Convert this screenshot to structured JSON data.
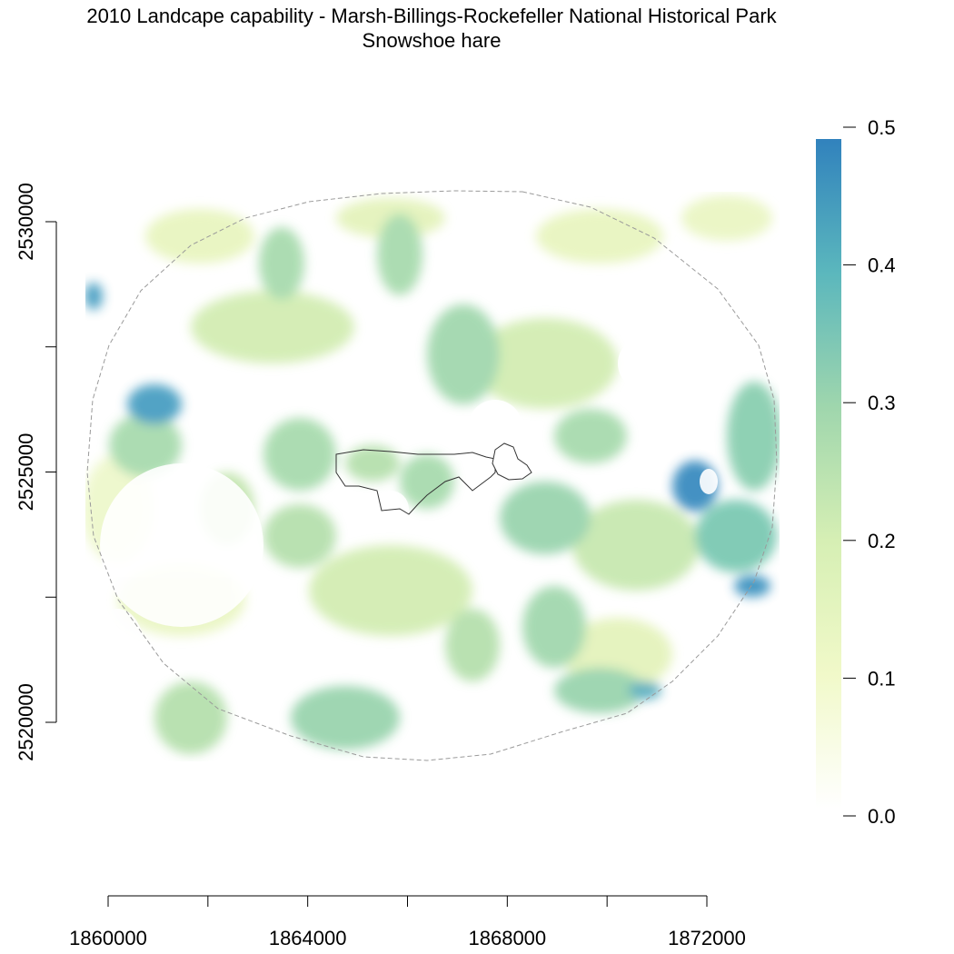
{
  "title": "2010 Landcape capability - Marsh-Billings-Rockefeller National Historical Park",
  "subtitle": "Snowshoe hare",
  "x_axis": {
    "ticks": [
      1860000,
      1862000,
      1864000,
      1866000,
      1868000,
      1870000,
      1872000
    ],
    "labels": [
      "1860000",
      "",
      "1864000",
      "",
      "1868000",
      "",
      "1872000"
    ]
  },
  "y_axis": {
    "ticks": [
      2520000,
      2522500,
      2525000,
      2527500,
      2530000
    ],
    "labels": [
      "2520000",
      "",
      "2525000",
      "",
      "2530000"
    ]
  },
  "legend": {
    "ticks": [
      0.0,
      0.1,
      0.2,
      0.3,
      0.4,
      0.5
    ],
    "labels": [
      "0.0",
      "0.1",
      "0.2",
      "0.3",
      "0.4",
      "0.5"
    ],
    "colors": [
      "#ffffff",
      "#f1f9c9",
      "#d6efb4",
      "#9fd6ad",
      "#5bb7bd",
      "#3182bd"
    ]
  }
}
